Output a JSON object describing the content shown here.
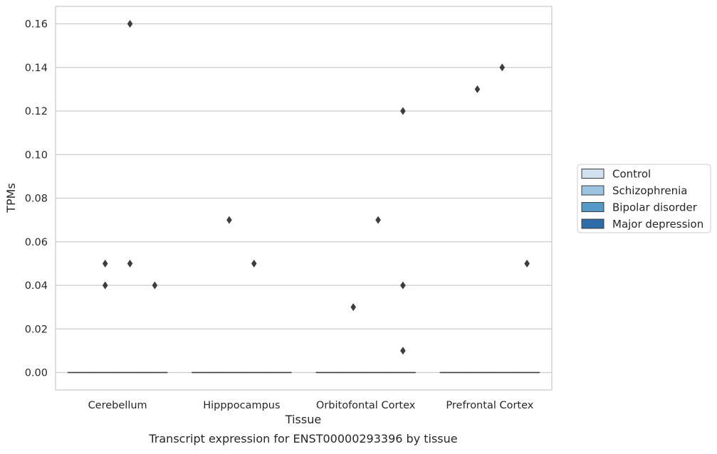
{
  "chart_data": {
    "type": "box",
    "title": "",
    "caption": "Transcript expression for ENST00000293396 by tissue",
    "xlabel": "Tissue",
    "ylabel": "TPMs",
    "categories": [
      "Cerebellum",
      "Hipppocampus",
      "Orbitofontal Cortex",
      "Prefrontal Cortex"
    ],
    "ylim": [
      -0.008,
      0.168
    ],
    "yticks": [
      0.0,
      0.02,
      0.04,
      0.06,
      0.08,
      0.1,
      0.12,
      0.14,
      0.16
    ],
    "ytick_labels": [
      "0.00",
      "0.02",
      "0.04",
      "0.06",
      "0.08",
      "0.10",
      "0.12",
      "0.14",
      "0.16"
    ],
    "grid": "horizontal",
    "legend_position": "right",
    "series": [
      {
        "name": "Control",
        "color": "#d1e1f0",
        "boxes": [
          {
            "median": 0,
            "q1": 0,
            "q3": 0
          },
          {
            "median": 0,
            "q1": 0,
            "q3": 0
          },
          {
            "median": 0,
            "q1": 0,
            "q3": 0
          },
          {
            "median": 0,
            "q1": 0,
            "q3": 0
          }
        ],
        "outliers": [
          [],
          [],
          [],
          []
        ]
      },
      {
        "name": "Schizophrenia",
        "color": "#9cc4e0",
        "boxes": [
          {
            "median": 0,
            "q1": 0,
            "q3": 0
          },
          {
            "median": 0,
            "q1": 0,
            "q3": 0
          },
          {
            "median": 0,
            "q1": 0,
            "q3": 0
          },
          {
            "median": 0,
            "q1": 0,
            "q3": 0
          }
        ],
        "outliers": [
          [
            0.04,
            0.05
          ],
          [
            0.07
          ],
          [
            0.03
          ],
          [
            0.13
          ]
        ]
      },
      {
        "name": "Bipolar disorder",
        "color": "#5599c7",
        "boxes": [
          {
            "median": 0,
            "q1": 0,
            "q3": 0
          },
          {
            "median": 0,
            "q1": 0,
            "q3": 0
          },
          {
            "median": 0,
            "q1": 0,
            "q3": 0
          },
          {
            "median": 0,
            "q1": 0,
            "q3": 0
          }
        ],
        "outliers": [
          [
            0.16,
            0.05
          ],
          [
            0.05
          ],
          [
            0.07
          ],
          [
            0.14
          ]
        ]
      },
      {
        "name": "Major depression",
        "color": "#2e6ca8",
        "boxes": [
          {
            "median": 0,
            "q1": 0,
            "q3": 0
          },
          {
            "median": 0,
            "q1": 0,
            "q3": 0
          },
          {
            "median": 0,
            "q1": 0,
            "q3": 0
          },
          {
            "median": 0,
            "q1": 0,
            "q3": 0
          }
        ],
        "outliers": [
          [
            0.04
          ],
          [],
          [
            0.12,
            0.04,
            0.01
          ],
          [
            0.05
          ]
        ]
      }
    ]
  }
}
